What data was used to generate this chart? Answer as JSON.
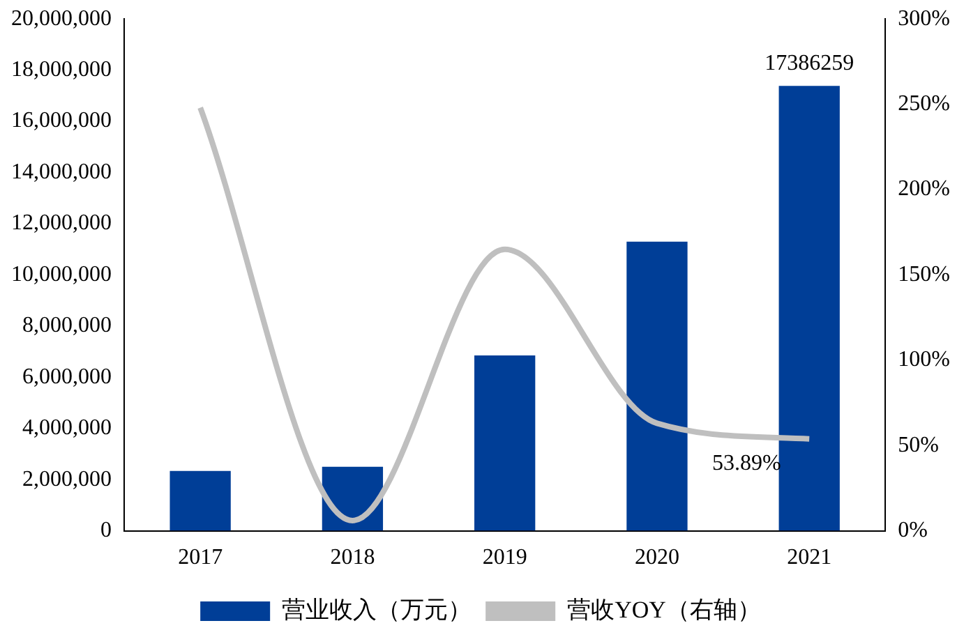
{
  "chart_data": {
    "type": "bar",
    "categories": [
      "2017",
      "2018",
      "2019",
      "2020",
      "2021"
    ],
    "series": [
      {
        "name": "营业收入（万元）",
        "color": "#003e97",
        "values": [
          2340000,
          2500000,
          6850000,
          11300000,
          17386259
        ],
        "value_labels": [
          null,
          null,
          null,
          null,
          "17386259"
        ]
      },
      {
        "name": "营收YOY（右轴）",
        "type": "line",
        "axis": "y2",
        "color": "#bfbfbf",
        "values": [
          248,
          6,
          165,
          63,
          53.89
        ],
        "value_labels": [
          null,
          null,
          null,
          null,
          "53.89%"
        ]
      }
    ],
    "ylim": [
      0,
      20000000
    ],
    "yticks": [
      0,
      {
        "value": 2000000,
        "label": "2,000,000"
      },
      {
        "value": 4000000,
        "label": "4,000,000"
      },
      {
        "value": 6000000,
        "label": "6,000,000"
      },
      {
        "value": 8000000,
        "label": "8,000,000"
      },
      {
        "value": 10000000,
        "label": "10,000,000"
      },
      {
        "value": 12000000,
        "label": "12,000,000"
      },
      {
        "value": 14000000,
        "label": "14,000,000"
      },
      {
        "value": 16000000,
        "label": "16,000,000"
      },
      {
        "value": 18000000,
        "label": "18,000,000"
      },
      {
        "value": 20000000,
        "label": "20,000,000"
      }
    ],
    "y2lim": [
      0,
      300
    ],
    "y2ticks": [
      {
        "value": 0,
        "label": "0%"
      },
      {
        "value": 50,
        "label": "50%"
      },
      {
        "value": 100,
        "label": "100%"
      },
      {
        "value": 150,
        "label": "150%"
      },
      {
        "value": 200,
        "label": "200%"
      },
      {
        "value": 250,
        "label": "250%"
      },
      {
        "value": 300,
        "label": "300%"
      }
    ],
    "grid": false,
    "legend": "bottom",
    "marker": "none",
    "line_style": "solid"
  }
}
